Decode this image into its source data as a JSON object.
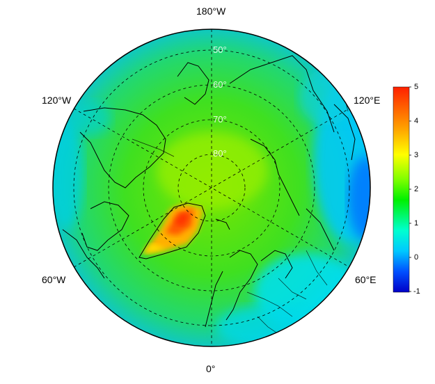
{
  "map": {
    "projection": "north polar stereographic",
    "longitude_labels": {
      "top": "180°W",
      "upper_left": "120°W",
      "upper_right": "120°E",
      "lower_left": "60°W",
      "lower_right": "60°E",
      "bottom": "0°"
    },
    "latitude_labels": [
      "50°",
      "60°",
      "70°",
      "80°"
    ],
    "grid": "dashed",
    "coastlines": true,
    "country_borders": true
  },
  "colorbar": {
    "ticks": [
      "5",
      "4",
      "3",
      "2",
      "1",
      "0",
      "-1"
    ],
    "min": -1,
    "max": 5,
    "colors": [
      "#0000c8",
      "#0050ff",
      "#00c8ff",
      "#00ffd0",
      "#00f000",
      "#80ff00",
      "#ffff00",
      "#ffa000",
      "#ff2000"
    ]
  }
}
